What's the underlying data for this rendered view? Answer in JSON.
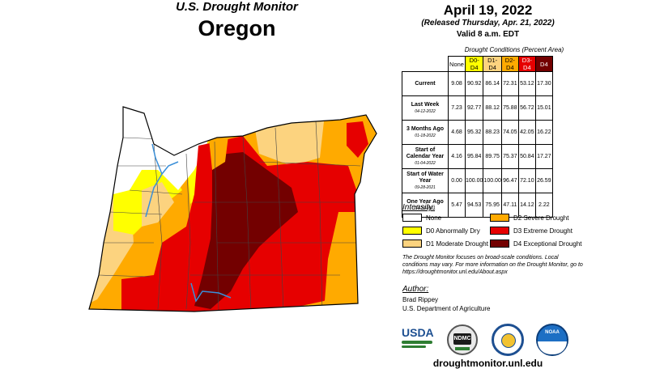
{
  "header": {
    "title": "U.S. Drought Monitor",
    "state": "Oregon",
    "date": "April 19, 2022",
    "released": "(Released Thursday, Apr. 21, 2022)",
    "valid": "Valid 8 a.m. EDT"
  },
  "conditions": {
    "title": "Drought Conditions (Percent Area)",
    "columns": [
      "None",
      "D0-D4",
      "D1-D4",
      "D2-D4",
      "D3-D4",
      "D4"
    ],
    "column_colors": [
      "#ffffff",
      "#ffff00",
      "#fcd37f",
      "#ffaa00",
      "#e60000",
      "#730000"
    ],
    "rows": [
      {
        "label": "Current",
        "date": "",
        "values": [
          "9.08",
          "90.92",
          "86.14",
          "72.31",
          "53.12",
          "17.30"
        ]
      },
      {
        "label": "Last Week",
        "date": "04-12-2022",
        "values": [
          "7.23",
          "92.77",
          "88.12",
          "75.88",
          "56.72",
          "15.01"
        ]
      },
      {
        "label": "3 Months Ago",
        "date": "01-18-2022",
        "values": [
          "4.68",
          "95.32",
          "88.23",
          "74.05",
          "42.05",
          "16.22"
        ]
      },
      {
        "label": "Start of Calendar Year",
        "date": "01-04-2022",
        "values": [
          "4.16",
          "95.84",
          "89.75",
          "75.37",
          "50.84",
          "17.27"
        ]
      },
      {
        "label": "Start of Water Year",
        "date": "09-28-2021",
        "values": [
          "0.00",
          "100.00",
          "100.00",
          "96.47",
          "72.10",
          "26.59"
        ]
      },
      {
        "label": "One Year Ago",
        "date": "04-20-2021",
        "values": [
          "5.47",
          "94.53",
          "75.95",
          "47.11",
          "14.12",
          "2.22"
        ]
      }
    ]
  },
  "legend": {
    "title": "Intensity:",
    "items": [
      {
        "label": "None",
        "color": "#ffffff"
      },
      {
        "label": "D0 Abnormally Dry",
        "color": "#ffff00"
      },
      {
        "label": "D1 Moderate Drought",
        "color": "#fcd37f"
      },
      {
        "label": "D2 Severe Drought",
        "color": "#ffaa00"
      },
      {
        "label": "D3 Extreme Drought",
        "color": "#e60000"
      },
      {
        "label": "D4 Exceptional Drought",
        "color": "#730000"
      }
    ]
  },
  "note": "The Drought Monitor focuses on broad-scale conditions. Local conditions may vary. For more information on the Drought Monitor, go to https://droughtmonitor.unl.edu/About.aspx",
  "author": {
    "title": "Author:",
    "name": "Brad Rippey",
    "org": "U.S. Department of Agriculture"
  },
  "logos": {
    "usda": "USDA",
    "ndmc": "NDMC",
    "noaa": "NOAA"
  },
  "website": "droughtmonitor.unl.edu"
}
